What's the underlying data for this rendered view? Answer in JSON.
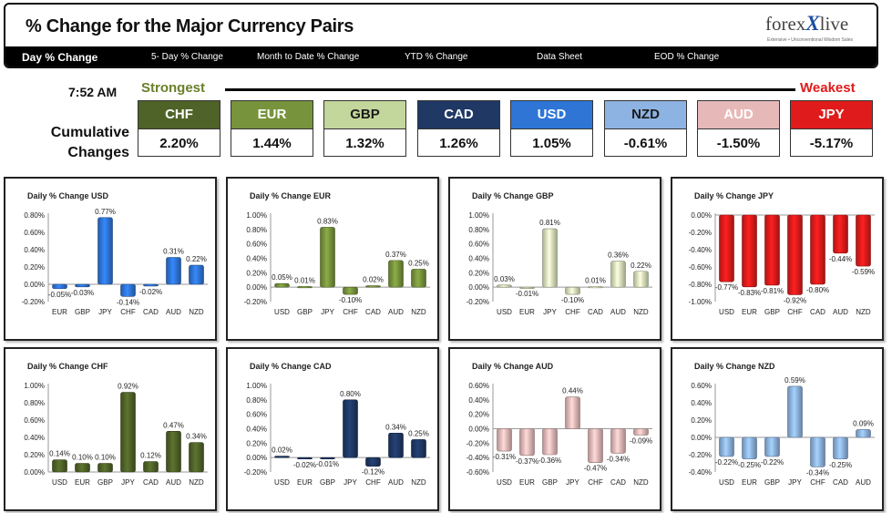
{
  "header": {
    "title": "% Change for the Major Currency Pairs",
    "logo_text": "forex",
    "logo_x": "X",
    "logo_text2": "live",
    "logo_tagline": "Extensive • Unconventional Wisdom Sales"
  },
  "tabs": [
    {
      "label": "Day % Change",
      "active": true
    },
    {
      "label": "5- Day % Change",
      "active": false
    },
    {
      "label": "Month to Date % Change",
      "active": false
    },
    {
      "label": "YTD % Change",
      "active": false
    },
    {
      "label": "Data Sheet",
      "active": false
    },
    {
      "label": "EOD % Change",
      "active": false
    }
  ],
  "time": "7:52 AM",
  "strongest_label": "Strongest",
  "weakest_label": "Weakest",
  "cumulative_label_line1": "Cumulative",
  "cumulative_label_line2": "Changes",
  "currencies": [
    {
      "code": "CHF",
      "value": "2.20%",
      "color": "#4f6228",
      "text_color": "#ffffff"
    },
    {
      "code": "EUR",
      "value": "1.44%",
      "color": "#77933c",
      "text_color": "#ffffff"
    },
    {
      "code": "GBP",
      "value": "1.32%",
      "color": "#c3d69b",
      "text_color": "#1a1a1a"
    },
    {
      "code": "CAD",
      "value": "1.26%",
      "color": "#1f3864",
      "text_color": "#ffffff"
    },
    {
      "code": "USD",
      "value": "1.05%",
      "color": "#2e75d6",
      "text_color": "#ffffff"
    },
    {
      "code": "NZD",
      "value": "-0.61%",
      "color": "#8db3e2",
      "text_color": "#1a1a1a"
    },
    {
      "code": "AUD",
      "value": "-1.50%",
      "color": "#e6b9b8",
      "text_color": "#ffffff"
    },
    {
      "code": "JPY",
      "value": "-5.17%",
      "color": "#e01b1b",
      "text_color": "#ffffff"
    }
  ],
  "chart_data": [
    {
      "type": "bar",
      "title": "Daily % Change USD",
      "color": "#2e75d6",
      "categories": [
        "EUR",
        "GBP",
        "JPY",
        "CHF",
        "CAD",
        "AUD",
        "NZD"
      ],
      "values": [
        -0.05,
        -0.03,
        0.77,
        -0.14,
        -0.02,
        0.31,
        0.22
      ],
      "labels": [
        "-0.05%",
        "-0.03%",
        "0.77%",
        "-0.14%",
        "-0.02%",
        "0.31%",
        "0.22%"
      ],
      "ylim": [
        -0.2,
        0.8
      ],
      "ticks": [
        "0.80%",
        "0.60%",
        "0.40%",
        "0.20%",
        "0.00%",
        "-0.20%"
      ]
    },
    {
      "type": "bar",
      "title": "Daily % Change EUR",
      "color": "#77933c",
      "categories": [
        "USD",
        "GBP",
        "JPY",
        "CHF",
        "CAD",
        "AUD",
        "NZD"
      ],
      "values": [
        0.05,
        0.01,
        0.83,
        -0.1,
        0.02,
        0.37,
        0.25
      ],
      "labels": [
        "0.05%",
        "0.01%",
        "0.83%",
        "-0.10%",
        "0.02%",
        "0.37%",
        "0.25%"
      ],
      "ylim": [
        -0.2,
        1.0
      ],
      "ticks": [
        "1.00%",
        "0.80%",
        "0.60%",
        "0.40%",
        "0.20%",
        "0.00%",
        "-0.20%"
      ]
    },
    {
      "type": "bar",
      "title": "Daily % Change GBP",
      "color": "#d7e4bc",
      "categories": [
        "USD",
        "EUR",
        "JPY",
        "CHF",
        "CAD",
        "AUD",
        "NZD"
      ],
      "values": [
        0.03,
        -0.01,
        0.81,
        -0.1,
        0.01,
        0.36,
        0.22
      ],
      "labels": [
        "0.03%",
        "-0.01%",
        "0.81%",
        "-0.10%",
        "0.01%",
        "0.36%",
        "0.22%"
      ],
      "ylim": [
        -0.2,
        1.0
      ],
      "ticks": [
        "1.00%",
        "0.80%",
        "0.60%",
        "0.40%",
        "0.20%",
        "0.00%",
        "-0.20%"
      ]
    },
    {
      "type": "bar",
      "title": "Daily % Change JPY",
      "color": "#e01b1b",
      "categories": [
        "USD",
        "EUR",
        "GBP",
        "CHF",
        "CAD",
        "AUD",
        "NZD"
      ],
      "values": [
        -0.77,
        -0.83,
        -0.81,
        -0.92,
        -0.8,
        -0.44,
        -0.59
      ],
      "labels": [
        "-0.77%",
        "-0.83%",
        "-0.81%",
        "-0.92%",
        "-0.80%",
        "-0.44%",
        "-0.59%"
      ],
      "ylim": [
        -1.0,
        0.0
      ],
      "ticks": [
        "0.00%",
        "-0.20%",
        "-0.40%",
        "-0.60%",
        "-0.80%",
        "-1.00%"
      ]
    },
    {
      "type": "bar",
      "title": "Daily % Change CHF",
      "color": "#4f6228",
      "categories": [
        "USD",
        "EUR",
        "GBP",
        "JPY",
        "CAD",
        "AUD",
        "NZD"
      ],
      "values": [
        0.14,
        0.1,
        0.1,
        0.92,
        0.12,
        0.47,
        0.34
      ],
      "labels": [
        "0.14%",
        "0.10%",
        "0.10%",
        "0.92%",
        "0.12%",
        "0.47%",
        "0.34%"
      ],
      "ylim": [
        0.0,
        1.0
      ],
      "ticks": [
        "1.00%",
        "0.80%",
        "0.60%",
        "0.40%",
        "0.20%",
        "0.00%"
      ]
    },
    {
      "type": "bar",
      "title": "Daily % Change CAD",
      "color": "#1f3864",
      "categories": [
        "USD",
        "EUR",
        "GBP",
        "JPY",
        "CHF",
        "AUD",
        "NZD"
      ],
      "values": [
        0.02,
        -0.02,
        -0.01,
        0.8,
        -0.12,
        0.34,
        0.25
      ],
      "labels": [
        "0.02%",
        "-0.02%",
        "-0.01%",
        "0.80%",
        "-0.12%",
        "0.34%",
        "0.25%"
      ],
      "ylim": [
        -0.2,
        1.0
      ],
      "ticks": [
        "1.00%",
        "0.80%",
        "0.60%",
        "0.40%",
        "0.20%",
        "0.00%",
        "-0.20%"
      ]
    },
    {
      "type": "bar",
      "title": "Daily % Change AUD",
      "color": "#e6b9b8",
      "categories": [
        "USD",
        "EUR",
        "GBP",
        "JPY",
        "CHF",
        "CAD",
        "NZD"
      ],
      "values": [
        -0.31,
        -0.37,
        -0.36,
        0.44,
        -0.47,
        -0.34,
        -0.09
      ],
      "labels": [
        "-0.31%",
        "-0.37%",
        "-0.36%",
        "0.44%",
        "-0.47%",
        "-0.34%",
        "-0.09%"
      ],
      "ylim": [
        -0.6,
        0.6
      ],
      "ticks": [
        "0.60%",
        "0.40%",
        "0.20%",
        "0.00%",
        "-0.20%",
        "-0.40%",
        "-0.60%"
      ]
    },
    {
      "type": "bar",
      "title": "Daily % Change NZD",
      "color": "#8db3e2",
      "categories": [
        "USD",
        "EUR",
        "GBP",
        "JPY",
        "CHF",
        "CAD",
        "AUD"
      ],
      "values": [
        -0.22,
        -0.25,
        -0.22,
        0.59,
        -0.34,
        -0.25,
        0.09
      ],
      "labels": [
        "-0.22%",
        "-0.25%",
        "-0.22%",
        "0.59%",
        "-0.34%",
        "-0.25%",
        "0.09%"
      ],
      "ylim": [
        -0.4,
        0.6
      ],
      "ticks": [
        "0.60%",
        "0.40%",
        "0.20%",
        "0.00%",
        "-0.20%",
        "-0.40%"
      ]
    }
  ]
}
